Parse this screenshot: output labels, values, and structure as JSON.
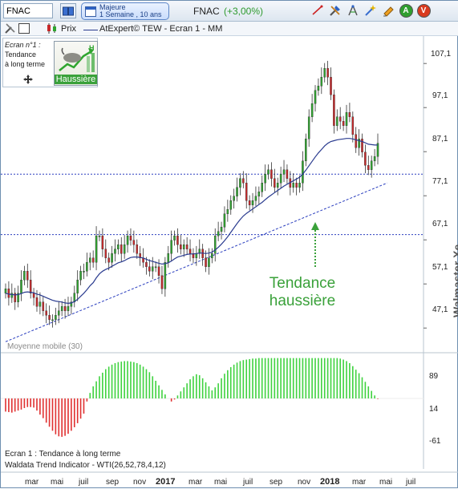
{
  "toolbar": {
    "symbol": "FNAC",
    "period_line1": "Majeure",
    "period_line2": "1 Semaine , 10 ans",
    "ticker_name": "FNAC",
    "ticker_change": "(+3,00%)",
    "icons": [
      "chart-line-icon",
      "tools-icon",
      "compass-icon",
      "magic-wand-icon",
      "highlighter-icon",
      "alert-a-icon",
      "alert-v-icon"
    ],
    "alert_a_label": "A",
    "alert_v_label": "V",
    "alert_a_color": "#2f9e2f",
    "alert_v_color": "#d93a1e"
  },
  "toolbar2": {
    "price_label": "Prix",
    "legend_label": "AtExpert© TEW - Ecran 1 - MM"
  },
  "card": {
    "title": "Ecran n°1 :",
    "line2": "Tendance",
    "line3": "à long terme",
    "badge_label": "Haussière"
  },
  "annotation": {
    "line1": "Tendance",
    "line2": "haussière"
  },
  "watermark": "Walmaster Xe",
  "ma_label": "Moyenne mobile (30)",
  "indicator": {
    "title1": "Ecran 1 : Tendance à long terme",
    "title2": "Waldata Trend Indicator - WTI(26,52,78,4,12)"
  },
  "price_axis": [
    "107,1",
    "97,1",
    "87,1",
    "77,1",
    "67,1",
    "57,1",
    "47,1"
  ],
  "indicator_axis": [
    "89",
    "14",
    "-61"
  ],
  "time_axis": [
    "mar",
    "mai",
    "juil",
    "sep",
    "nov",
    "2017",
    "mar",
    "mai",
    "juil",
    "sep",
    "nov",
    "2018",
    "mar",
    "mai",
    "juil"
  ],
  "colors": {
    "up": "#2fa52f",
    "down": "#c8282a",
    "ma": "#2a3b8f",
    "guides": "#2b3fbf",
    "annotation": "#3aa13a",
    "wti_pos": "#3fd23f",
    "wti_neg": "#e03030"
  },
  "chart_data": {
    "type": "candlestick",
    "price_ylim": [
      41.5,
      111.5
    ],
    "horizontal_levels": [
      82.0,
      68.3
    ],
    "trendline": [
      [
        0,
        44.0
      ],
      [
        122,
        80.0
      ]
    ],
    "weekly_close": [
      56,
      54,
      55,
      53,
      55,
      58,
      60,
      58,
      55,
      54,
      52,
      53,
      51,
      50,
      49,
      49,
      50,
      51,
      52,
      51,
      52,
      53,
      55,
      58,
      60,
      60,
      62,
      63,
      62,
      68,
      68,
      65,
      63,
      62,
      64,
      65,
      66,
      64,
      66,
      68,
      67,
      66,
      64,
      63,
      62,
      61,
      60,
      61,
      61,
      59,
      56,
      62,
      64,
      67,
      68,
      66,
      65,
      66,
      65,
      64,
      63,
      64,
      65,
      63,
      61,
      63,
      64,
      68,
      69,
      70,
      73,
      74,
      76,
      77,
      79,
      81,
      80,
      76,
      75,
      76,
      77,
      78,
      80,
      82,
      83,
      81,
      79,
      80,
      82,
      83,
      81,
      79,
      80,
      79,
      80,
      85,
      90,
      95,
      98,
      101,
      102,
      104,
      106,
      104,
      100,
      93,
      95,
      94,
      93,
      96,
      95,
      91,
      88,
      90,
      87,
      84,
      83,
      85,
      86,
      89
    ],
    "ma30": [
      55,
      54.8,
      54.7,
      54.6,
      54.7,
      54.9,
      55.2,
      55.3,
      55.2,
      55.1,
      54.8,
      54.6,
      54.3,
      54.0,
      53.7,
      53.4,
      53.2,
      53.1,
      53.0,
      52.8,
      52.7,
      52.8,
      53.1,
      53.6,
      54.3,
      55.0,
      55.8,
      56.7,
      57.4,
      58.5,
      59.4,
      60.0,
      60.4,
      60.7,
      61.1,
      61.5,
      61.9,
      62.1,
      62.4,
      62.8,
      63.1,
      63.2,
      63.2,
      63.1,
      63.0,
      62.7,
      62.4,
      62.2,
      62.0,
      61.8,
      61.6,
      61.7,
      61.9,
      62.3,
      62.8,
      63.2,
      63.4,
      63.6,
      63.8,
      63.9,
      63.9,
      64.0,
      64.1,
      64.1,
      64.0,
      64.1,
      64.3,
      64.8,
      65.4,
      66.1,
      66.9,
      67.8,
      68.8,
      69.8,
      70.8,
      71.7,
      72.5,
      73.1,
      73.6,
      74.1,
      74.6,
      75.1,
      75.6,
      76.2,
      76.8,
      77.3,
      77.8,
      78.3,
      78.8,
      79.3,
      79.7,
      80.1,
      80.5,
      80.9,
      81.3,
      82.0,
      82.9,
      83.9,
      84.9,
      85.9,
      86.8,
      87.6,
      88.4,
      89.0,
      89.4,
      89.6,
      89.8,
      89.9,
      90.0,
      90.1,
      90.1,
      90.0,
      89.8,
      89.6,
      89.4,
      89.1,
      88.8,
      88.7,
      88.6,
      88.6
    ],
    "wti_ylim": [
      -78,
      103
    ],
    "wti": [
      -12,
      -13,
      -14,
      -12,
      -10,
      -8,
      -5,
      -3,
      -3,
      -4,
      -10,
      -18,
      -25,
      -34,
      -42,
      -50,
      -57,
      -61,
      -62,
      -60,
      -56,
      -50,
      -43,
      -35,
      -26,
      -16,
      8,
      25,
      38,
      48,
      58,
      65,
      72,
      77,
      81,
      84,
      86,
      87,
      88,
      88,
      87,
      86,
      84,
      81,
      77,
      72,
      66,
      58,
      49,
      40,
      31,
      22,
      14,
      8,
      12,
      20,
      28,
      36,
      44,
      52,
      58,
      62,
      60,
      54,
      46,
      38,
      30,
      36,
      44,
      54,
      63,
      70,
      76,
      81,
      85,
      88,
      90,
      91,
      92,
      93,
      93,
      94,
      94,
      94,
      94,
      94,
      94,
      94,
      94,
      94,
      94,
      94,
      94,
      94,
      94,
      94,
      94,
      94,
      94,
      94,
      94,
      94,
      94,
      94,
      94,
      94,
      94,
      93,
      91,
      88,
      84,
      78,
      71,
      64,
      56,
      47,
      38,
      29,
      20,
      13
    ]
  }
}
